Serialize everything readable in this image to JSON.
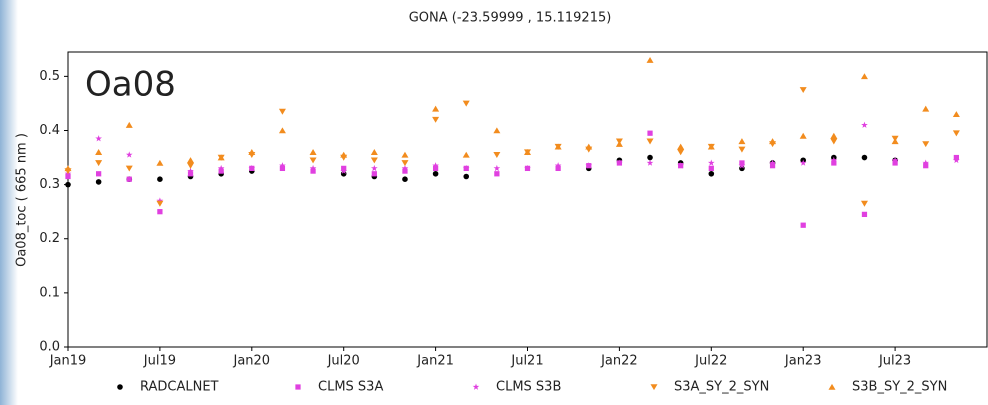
{
  "chart_data": {
    "type": "scatter",
    "title": "GONA (-23.59999 , 15.119215)",
    "y_label": "Oa08_toc ( 665 nm )",
    "annotation": "Oa08",
    "x": [
      "2019-01",
      "2019-03",
      "2019-05",
      "2019-07",
      "2019-09",
      "2019-11",
      "2020-01",
      "2020-03",
      "2020-05",
      "2020-07",
      "2020-09",
      "2020-11",
      "2021-01",
      "2021-03",
      "2021-05",
      "2021-07",
      "2021-09",
      "2021-11",
      "2022-01",
      "2022-03",
      "2022-05",
      "2022-07",
      "2022-09",
      "2022-11",
      "2023-01",
      "2023-03",
      "2023-05",
      "2023-07",
      "2023-09",
      "2023-11"
    ],
    "xlim": [
      "2019-01",
      "2024-01"
    ],
    "xticks": [
      {
        "value": "2019-01",
        "label": "Jan19"
      },
      {
        "value": "2019-07",
        "label": "Jul19"
      },
      {
        "value": "2020-01",
        "label": "Jan20"
      },
      {
        "value": "2020-07",
        "label": "Jul20"
      },
      {
        "value": "2021-01",
        "label": "Jan21"
      },
      {
        "value": "2021-07",
        "label": "Jul21"
      },
      {
        "value": "2022-01",
        "label": "Jan22"
      },
      {
        "value": "2022-07",
        "label": "Jul22"
      },
      {
        "value": "2023-01",
        "label": "Jan23"
      },
      {
        "value": "2023-07",
        "label": "Jul23"
      }
    ],
    "ylim": [
      0,
      0.545
    ],
    "yticks": [
      {
        "value": 0,
        "label": "0.0"
      },
      0.1,
      0.2,
      0.3,
      0.4,
      0.5
    ],
    "series": [
      {
        "name": "RADCALNET",
        "color": "#000000",
        "marker": "circle",
        "values": [
          0.3,
          0.305,
          0.31,
          0.31,
          0.315,
          0.32,
          0.325,
          null,
          null,
          0.32,
          0.315,
          0.31,
          0.32,
          0.315,
          null,
          null,
          null,
          0.33,
          0.345,
          0.35,
          0.34,
          0.32,
          0.33,
          0.34,
          0.345,
          0.35,
          0.35,
          0.345,
          null,
          null
        ]
      },
      {
        "name": "CLMS S3A",
        "color": "#e040e0",
        "marker": "square",
        "values": [
          0.315,
          0.32,
          0.31,
          0.25,
          0.32,
          0.325,
          0.33,
          0.33,
          0.325,
          0.33,
          0.32,
          0.325,
          0.33,
          0.33,
          0.32,
          0.33,
          0.33,
          0.335,
          0.34,
          0.395,
          0.335,
          0.33,
          0.34,
          0.335,
          0.225,
          0.34,
          0.245,
          0.34,
          0.335,
          0.35
        ]
      },
      {
        "name": "CLMS S3B",
        "color": "#e040e0",
        "marker": "star",
        "values": [
          0.32,
          0.385,
          0.355,
          0.27,
          0.325,
          0.33,
          0.33,
          0.335,
          0.33,
          0.325,
          0.33,
          0.33,
          0.335,
          0.33,
          0.33,
          0.33,
          0.335,
          0.335,
          0.34,
          0.34,
          0.335,
          0.34,
          0.335,
          0.34,
          0.34,
          0.345,
          0.41,
          0.345,
          0.34,
          0.345
        ]
      },
      {
        "name": "S3A_SY_2_SYN",
        "color": "#f28c1e",
        "marker": "triangle-down",
        "values": [
          0.325,
          0.34,
          0.33,
          0.265,
          0.335,
          0.35,
          0.355,
          0.435,
          0.345,
          0.35,
          0.345,
          0.34,
          0.42,
          0.45,
          0.355,
          0.36,
          0.37,
          0.365,
          0.38,
          0.38,
          0.36,
          0.37,
          0.365,
          0.375,
          0.475,
          0.38,
          0.265,
          0.385,
          0.375,
          0.395
        ]
      },
      {
        "name": "S3B_SY_2_SYN",
        "color": "#f28c1e",
        "marker": "triangle-up",
        "values": [
          0.33,
          0.36,
          0.41,
          0.34,
          0.345,
          0.35,
          0.36,
          0.4,
          0.36,
          0.355,
          0.36,
          0.355,
          0.44,
          0.355,
          0.4,
          0.36,
          0.37,
          0.37,
          0.375,
          0.53,
          0.37,
          0.37,
          0.38,
          0.38,
          0.39,
          0.39,
          0.5,
          0.38,
          0.44,
          0.43
        ]
      }
    ]
  }
}
